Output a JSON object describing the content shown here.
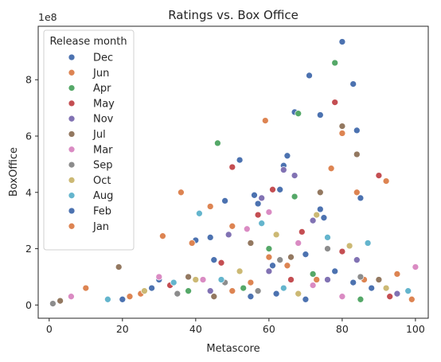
{
  "chart_data": {
    "type": "scatter",
    "title": "Ratings vs. Box Office",
    "xlabel": "Metascore",
    "ylabel": "BoxOffice",
    "y_offset_label": "1e8",
    "y_scale": 100000000,
    "xlim": [
      -3,
      103.5
    ],
    "ylim": [
      -0.47,
      9.9
    ],
    "xticks": [
      0,
      20,
      40,
      60,
      80,
      100
    ],
    "yticks": [
      0,
      2,
      4,
      6,
      8
    ],
    "grid": false,
    "legend": {
      "title": "Release month",
      "placement": "upper-left",
      "entries": [
        {
          "name": "Dec",
          "color": "#4c72b0"
        },
        {
          "name": "Jun",
          "color": "#dd8452"
        },
        {
          "name": "Apr",
          "color": "#55a868"
        },
        {
          "name": "May",
          "color": "#c44e52"
        },
        {
          "name": "Nov",
          "color": "#8172b3"
        },
        {
          "name": "Jul",
          "color": "#937860"
        },
        {
          "name": "Mar",
          "color": "#da8bc3"
        },
        {
          "name": "Sep",
          "color": "#8c8c8c"
        },
        {
          "name": "Oct",
          "color": "#ccb974"
        },
        {
          "name": "Aug",
          "color": "#64b5cd"
        },
        {
          "name": "Feb",
          "color": "#4c72b0"
        },
        {
          "name": "Jan",
          "color": "#dd8452"
        }
      ]
    },
    "series": [
      {
        "name": "Dec",
        "color": "#4c72b0",
        "points": [
          [
            80,
            9.35
          ],
          [
            71,
            8.15
          ],
          [
            83,
            7.85
          ],
          [
            67,
            6.85
          ],
          [
            74,
            6.75
          ],
          [
            84,
            6.2
          ],
          [
            65,
            5.3
          ],
          [
            52,
            5.15
          ],
          [
            64,
            4.95
          ],
          [
            63,
            4.1
          ],
          [
            56,
            3.9
          ],
          [
            48,
            3.7
          ],
          [
            85,
            3.8
          ],
          [
            40,
            2.3
          ],
          [
            75,
            3.1
          ],
          [
            45,
            1.6
          ],
          [
            30,
            0.9
          ],
          [
            70,
            1.8
          ],
          [
            55,
            0.3
          ],
          [
            88,
            0.6
          ],
          [
            20,
            0.2
          ],
          [
            62,
            0.4
          ],
          [
            78,
            1.2
          ]
        ]
      },
      {
        "name": "Jun",
        "color": "#dd8452",
        "points": [
          [
            59,
            6.55
          ],
          [
            80,
            6.1
          ],
          [
            36,
            4.0
          ],
          [
            44,
            3.5
          ],
          [
            92,
            4.4
          ],
          [
            77,
            4.85
          ],
          [
            31,
            2.45
          ],
          [
            10,
            0.6
          ],
          [
            86,
            0.9
          ],
          [
            50,
            2.8
          ],
          [
            65,
            1.4
          ],
          [
            25,
            0.4
          ],
          [
            95,
            1.1
          ],
          [
            55,
            0.8
          ]
        ]
      },
      {
        "name": "Apr",
        "color": "#55a868",
        "points": [
          [
            78,
            8.6
          ],
          [
            68,
            6.8
          ],
          [
            46,
            5.75
          ],
          [
            67,
            3.85
          ],
          [
            60,
            2.0
          ],
          [
            53,
            0.6
          ],
          [
            72,
            1.1
          ],
          [
            38,
            0.5
          ],
          [
            85,
            0.2
          ]
        ]
      },
      {
        "name": "May",
        "color": "#c44e52",
        "points": [
          [
            78,
            7.2
          ],
          [
            50,
            4.9
          ],
          [
            90,
            4.6
          ],
          [
            61,
            4.1
          ],
          [
            57,
            3.2
          ],
          [
            69,
            2.6
          ],
          [
            47,
            1.5
          ],
          [
            80,
            1.9
          ],
          [
            33,
            0.7
          ],
          [
            93,
            0.3
          ],
          [
            66,
            0.9
          ]
        ]
      },
      {
        "name": "Nov",
        "color": "#8172b3",
        "points": [
          [
            64,
            4.8
          ],
          [
            67,
            4.6
          ],
          [
            58,
            3.8
          ],
          [
            72,
            3.0
          ],
          [
            49,
            2.5
          ],
          [
            60,
            1.2
          ],
          [
            84,
            1.6
          ],
          [
            44,
            0.5
          ],
          [
            76,
            0.9
          ],
          [
            95,
            0.4
          ]
        ]
      },
      {
        "name": "Jul",
        "color": "#937860",
        "points": [
          [
            80,
            6.35
          ],
          [
            84,
            5.35
          ],
          [
            74,
            4.0
          ],
          [
            19,
            1.35
          ],
          [
            55,
            2.2
          ],
          [
            66,
            1.7
          ],
          [
            38,
            1.0
          ],
          [
            90,
            0.9
          ],
          [
            3,
            0.15
          ],
          [
            45,
            0.3
          ]
        ]
      },
      {
        "name": "Mar",
        "color": "#da8bc3",
        "points": [
          [
            60,
            3.3
          ],
          [
            54,
            2.7
          ],
          [
            68,
            2.2
          ],
          [
            30,
            1.0
          ],
          [
            72,
            0.7
          ],
          [
            42,
            0.9
          ],
          [
            100,
            1.35
          ],
          [
            6,
            0.3
          ],
          [
            80,
            0.3
          ]
        ]
      },
      {
        "name": "Sep",
        "color": "#8c8c8c",
        "points": [
          [
            1,
            0.05
          ],
          [
            63,
            1.6
          ],
          [
            76,
            2.0
          ],
          [
            48,
            0.8
          ],
          [
            85,
            1.0
          ],
          [
            35,
            0.4
          ],
          [
            57,
            0.5
          ]
        ]
      },
      {
        "name": "Oct",
        "color": "#ccb974",
        "points": [
          [
            73,
            3.2
          ],
          [
            62,
            2.5
          ],
          [
            82,
            2.1
          ],
          [
            40,
            0.9
          ],
          [
            52,
            1.2
          ],
          [
            26,
            0.5
          ],
          [
            92,
            0.6
          ],
          [
            68,
            0.4
          ]
        ]
      },
      {
        "name": "Aug",
        "color": "#64b5cd",
        "points": [
          [
            41,
            3.25
          ],
          [
            58,
            2.9
          ],
          [
            76,
            2.4
          ],
          [
            87,
            2.2
          ],
          [
            34,
            0.8
          ],
          [
            47,
            0.9
          ],
          [
            64,
            0.6
          ],
          [
            98,
            0.5
          ],
          [
            16,
            0.2
          ]
        ]
      },
      {
        "name": "Feb",
        "color": "#4c72b0",
        "points": [
          [
            57,
            3.6
          ],
          [
            74,
            3.4
          ],
          [
            44,
            2.4
          ],
          [
            61,
            1.4
          ],
          [
            83,
            0.8
          ],
          [
            28,
            0.6
          ],
          [
            70,
            0.2
          ]
        ]
      },
      {
        "name": "Jan",
        "color": "#dd8452",
        "points": [
          [
            84,
            4.0
          ],
          [
            39,
            2.2
          ],
          [
            60,
            1.7
          ],
          [
            73,
            0.9
          ],
          [
            22,
            0.3
          ],
          [
            50,
            0.5
          ],
          [
            99,
            0.2
          ]
        ]
      }
    ]
  }
}
